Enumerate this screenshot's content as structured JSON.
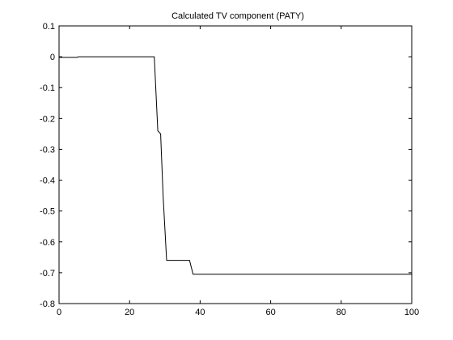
{
  "chart_data": {
    "type": "line",
    "title": "Calculated TV component (PATY)",
    "xlabel": "",
    "ylabel": "",
    "xlim": [
      0,
      100
    ],
    "ylim": [
      -0.8,
      0.1
    ],
    "xticks": [
      0,
      20,
      40,
      60,
      80,
      100
    ],
    "yticks": [
      0.1,
      0,
      -0.1,
      -0.2,
      -0.3,
      -0.4,
      -0.5,
      -0.6,
      -0.7,
      -0.8
    ],
    "xtick_labels": [
      "0",
      "20",
      "40",
      "60",
      "80",
      "100"
    ],
    "ytick_labels": [
      "0.1",
      "0",
      "-0.1",
      "-0.2",
      "-0.3",
      "-0.4",
      "-0.5",
      "-0.6",
      "-0.7",
      "-0.8"
    ],
    "grid": false,
    "series": [
      {
        "color": "#000000",
        "x": [
          0,
          5,
          5.5,
          27,
          28,
          28.8,
          29.5,
          30.5,
          37,
          38,
          100
        ],
        "y": [
          -0.002,
          -0.002,
          0.0,
          0.0,
          -0.24,
          -0.25,
          -0.45,
          -0.66,
          -0.66,
          -0.705,
          -0.705
        ]
      }
    ]
  }
}
